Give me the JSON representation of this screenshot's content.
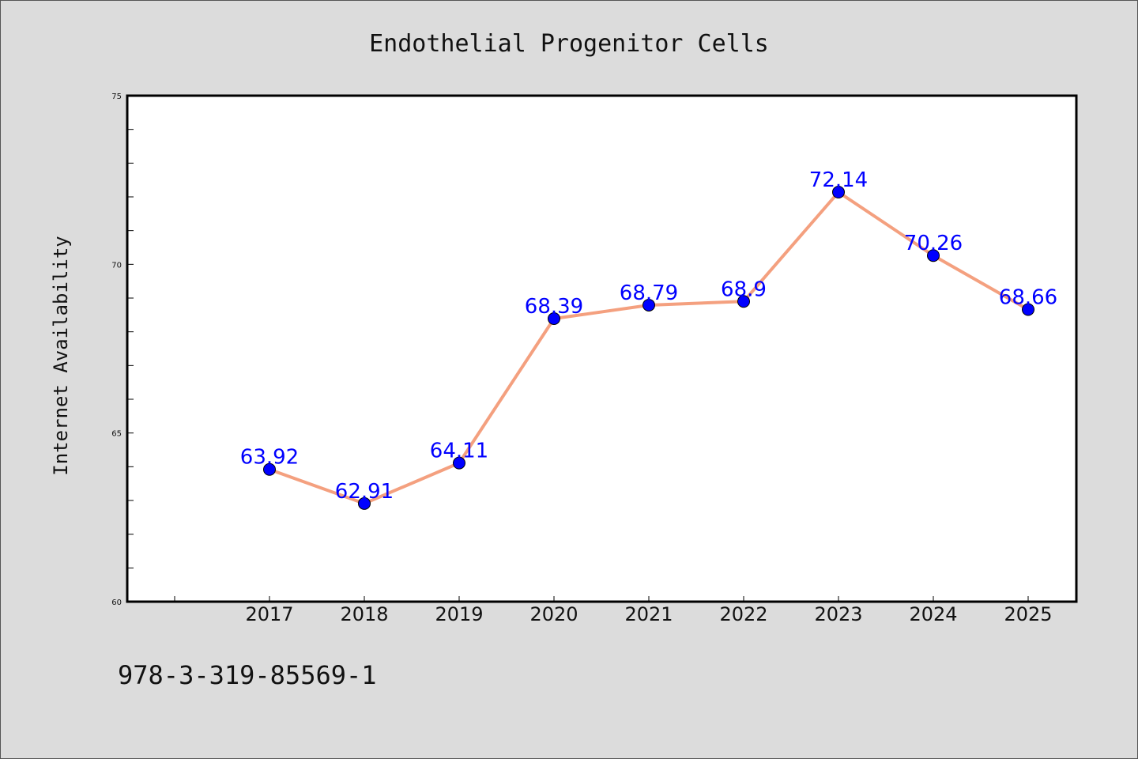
{
  "chart_data": {
    "type": "line",
    "title": "Endothelial Progenitor Cells",
    "xlabel": "",
    "ylabel": "Internet Availability",
    "categories": [
      "2017",
      "2018",
      "2019",
      "2020",
      "2021",
      "2022",
      "2023",
      "2024",
      "2025"
    ],
    "series": [
      {
        "values": [
          63.92,
          62.91,
          64.11,
          68.39,
          68.79,
          68.9,
          72.14,
          70.26,
          68.66
        ],
        "data_labels": [
          "63.92",
          "62.91",
          "64.11",
          "68.39",
          "68.79",
          "68.9",
          "72.14",
          "70.26",
          "68.66"
        ],
        "line_color": "#f4a07f",
        "marker_color": "#0000ff"
      }
    ],
    "ylim": [
      60,
      75
    ],
    "yticks": [
      "60",
      "65",
      "70",
      "75"
    ],
    "grid": false,
    "legend": "none"
  },
  "footer": {
    "code": "978-3-319-85569-1"
  }
}
